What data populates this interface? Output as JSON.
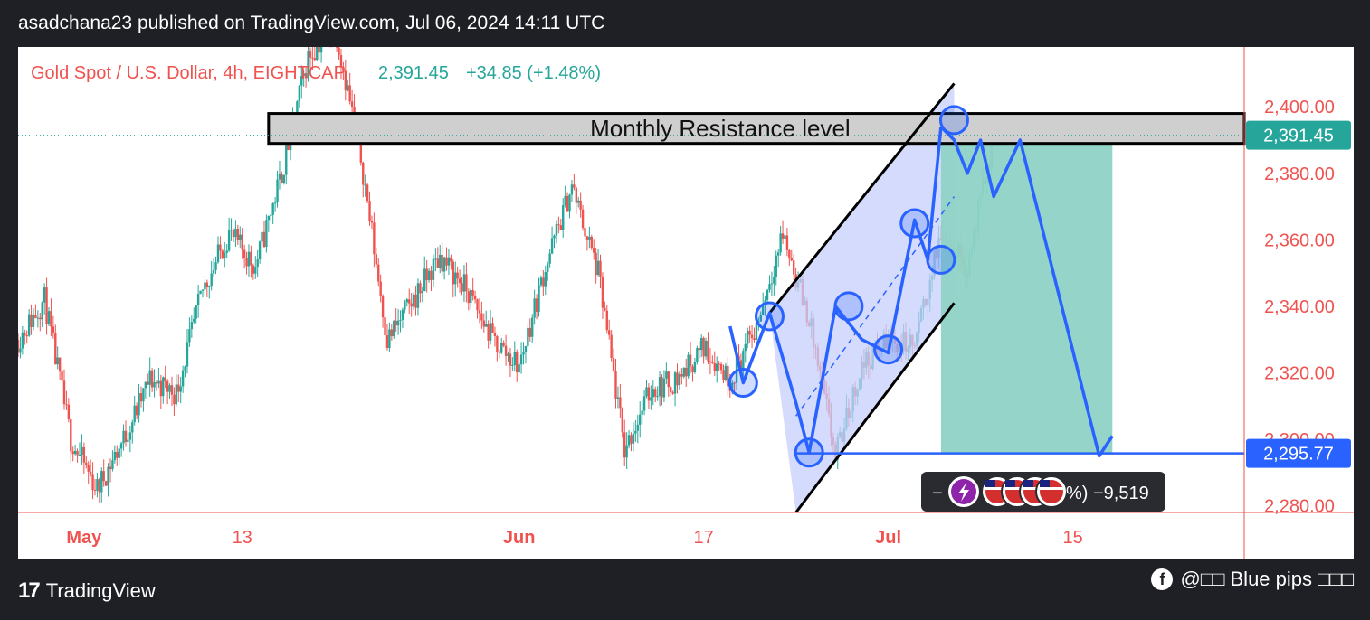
{
  "header": {
    "published": "asadchana23 published on TradingView.com, Jul 06, 2024 14:11 UTC"
  },
  "legend": {
    "symbol": "Gold Spot / U.S. Dollar, 4h, EIGHTCAP",
    "price": "2,391.45",
    "change": "+34.85 (+1.48%)"
  },
  "colors": {
    "up": "#26a69a",
    "down": "#ef5350",
    "trend": "#2962ff",
    "channel_fill": "#c5cffb",
    "target_fill": "#8fd3c6"
  },
  "annotations": {
    "resistance_label": "Monthly Resistance level",
    "current_price_tag": "2,391.45",
    "target_price_tag": "2,295.77",
    "pnl_label": "%) −9,519",
    "pnl_prefix": "−"
  },
  "footer": {
    "brand": "TradingView",
    "credit": "@□□ Blue pips □□□"
  },
  "chart_data": {
    "type": "candlestick",
    "symbol": "XAUUSD",
    "timeframe": "4h",
    "y_ticks": [
      2400,
      2380,
      2360,
      2340,
      2320,
      2300,
      2280
    ],
    "y_tick_labels": [
      "2,400.00",
      "2,380.00",
      "2,360.00",
      "2,340.00",
      "2,320.00",
      "2,300.00",
      "2,280.00"
    ],
    "ylim": [
      2278,
      2418
    ],
    "x_tick_labels": [
      "May",
      "13",
      "Jun",
      "17",
      "Jul",
      "15"
    ],
    "x_tick_dates": [
      "2024-05-01",
      "2024-05-13",
      "2024-06-03",
      "2024-06-17",
      "2024-07-01",
      "2024-07-15"
    ],
    "xlim": [
      "2024-04-26",
      "2024-07-28"
    ],
    "price_path": [
      [
        "2024-04-26",
        2330
      ],
      [
        "2024-04-28",
        2342
      ],
      [
        "2024-04-30",
        2300
      ],
      [
        "2024-05-02",
        2285
      ],
      [
        "2024-05-04",
        2300
      ],
      [
        "2024-05-06",
        2318
      ],
      [
        "2024-05-08",
        2314
      ],
      [
        "2024-05-10",
        2345
      ],
      [
        "2024-05-12",
        2362
      ],
      [
        "2024-05-14",
        2352
      ],
      [
        "2024-05-16",
        2380
      ],
      [
        "2024-05-18",
        2415
      ],
      [
        "2024-05-20",
        2425
      ],
      [
        "2024-05-22",
        2385
      ],
      [
        "2024-05-24",
        2330
      ],
      [
        "2024-05-26",
        2342
      ],
      [
        "2024-05-28",
        2355
      ],
      [
        "2024-05-30",
        2345
      ],
      [
        "2024-06-01",
        2330
      ],
      [
        "2024-06-03",
        2322
      ],
      [
        "2024-06-05",
        2352
      ],
      [
        "2024-06-07",
        2376
      ],
      [
        "2024-06-09",
        2350
      ],
      [
        "2024-06-11",
        2297
      ],
      [
        "2024-06-13",
        2315
      ],
      [
        "2024-06-15",
        2318
      ],
      [
        "2024-06-17",
        2328
      ],
      [
        "2024-06-19",
        2318
      ],
      [
        "2024-06-21",
        2334
      ],
      [
        "2024-06-23",
        2362
      ],
      [
        "2024-06-25",
        2336
      ],
      [
        "2024-06-27",
        2295
      ],
      [
        "2024-06-29",
        2322
      ],
      [
        "2024-07-01",
        2330
      ],
      [
        "2024-07-03",
        2328
      ],
      [
        "2024-07-05",
        2362
      ],
      [
        "2024-07-07",
        2352
      ],
      [
        "2024-07-09",
        2391
      ]
    ],
    "resistance_zone": {
      "from": "2024-05-15",
      "to": "2024-07-28",
      "low": 2389,
      "high": 2398
    },
    "current_price": 2391.45,
    "target_price": 2295.77,
    "pattern_points": [
      [
        "2024-06-19",
        2334
      ],
      [
        "2024-06-20",
        2317
      ],
      [
        "2024-06-22",
        2338
      ],
      [
        "2024-06-24",
        2311
      ],
      [
        "2024-06-25",
        2296
      ],
      [
        "2024-06-27",
        2340
      ],
      [
        "2024-06-29",
        2330
      ],
      [
        "2024-07-01",
        2326
      ],
      [
        "2024-07-03",
        2366
      ],
      [
        "2024-07-04",
        2354
      ],
      [
        "2024-07-05",
        2394
      ]
    ],
    "projection_points": [
      [
        "2024-07-05",
        2394
      ],
      [
        "2024-07-06",
        2390
      ],
      [
        "2024-07-07",
        2380
      ],
      [
        "2024-07-08",
        2390
      ],
      [
        "2024-07-09",
        2373
      ],
      [
        "2024-07-11",
        2390
      ],
      [
        "2024-07-17",
        2295
      ],
      [
        "2024-07-18",
        2301
      ]
    ],
    "circles": [
      [
        "2024-06-20",
        2317
      ],
      [
        "2024-06-22",
        2337
      ],
      [
        "2024-06-25",
        2296
      ],
      [
        "2024-06-28",
        2340
      ],
      [
        "2024-07-01",
        2327
      ],
      [
        "2024-07-03",
        2365
      ],
      [
        "2024-07-05",
        2354
      ],
      [
        "2024-07-06",
        2396
      ]
    ],
    "channel": {
      "upper": [
        [
          "2024-06-22",
          2338
        ],
        [
          "2024-07-06",
          2407
        ]
      ],
      "lower": [
        [
          "2024-06-24",
          2278
        ],
        [
          "2024-07-06",
          2341
        ]
      ],
      "mid": [
        [
          "2024-06-24",
          2307
        ],
        [
          "2024-07-06",
          2373
        ]
      ]
    },
    "target_zone": {
      "from": "2024-07-05",
      "to": "2024-07-18",
      "low": 2295.77,
      "high": 2389
    }
  }
}
